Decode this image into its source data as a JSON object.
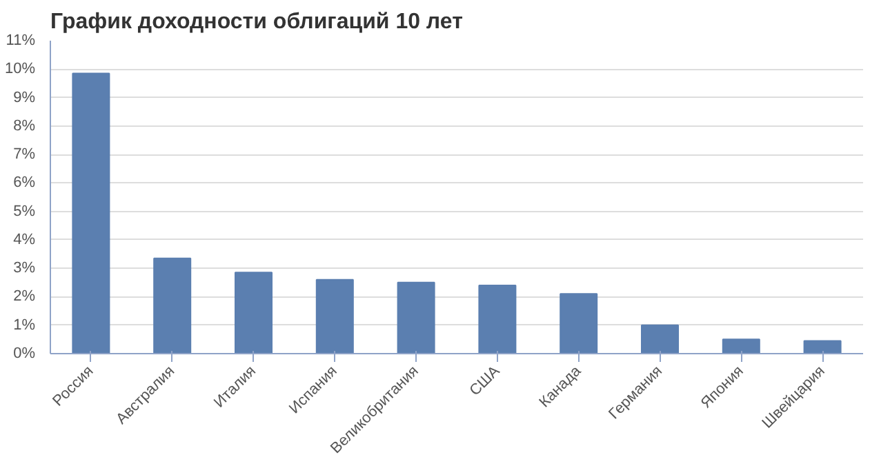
{
  "chart_data": {
    "type": "bar",
    "title": "График доходности облигаций 10 лет",
    "categories": [
      "Россия",
      "Австралия",
      "Италия",
      "Испания",
      "Великобритания",
      "США",
      "Канада",
      "Германия",
      "Япония",
      "Швейцария"
    ],
    "values": [
      9.85,
      3.35,
      2.85,
      2.6,
      2.5,
      2.4,
      2.1,
      1.0,
      0.5,
      0.45
    ],
    "color": "#5b7fb0",
    "ylim": [
      0,
      11
    ],
    "yticks": [
      {
        "value": 0,
        "label": "0%"
      },
      {
        "value": 1,
        "label": "1%"
      },
      {
        "value": 2,
        "label": "2%"
      },
      {
        "value": 3,
        "label": "3%"
      },
      {
        "value": 4,
        "label": "4%"
      },
      {
        "value": 5,
        "label": "5%"
      },
      {
        "value": 6,
        "label": "6%"
      },
      {
        "value": 7,
        "label": "7%"
      },
      {
        "value": 8,
        "label": "8%"
      },
      {
        "value": 9,
        "label": "9%"
      },
      {
        "value": 10,
        "label": "10%"
      },
      {
        "value": 11,
        "label": "11%"
      }
    ],
    "grid": "y"
  }
}
